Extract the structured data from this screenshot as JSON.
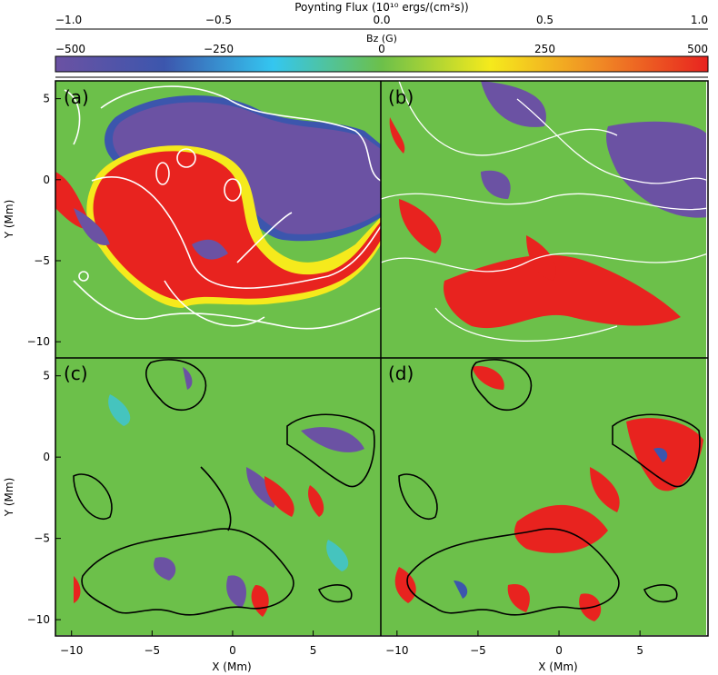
{
  "chart_data": {
    "type": "heatmap",
    "colorbar": {
      "top_axis": {
        "title": "Poynting Flux (10¹⁰ ergs/(cm²s))",
        "range": [
          -1.0,
          1.0
        ],
        "ticks": [
          "-1.0",
          "-0.5",
          "0.0",
          "0.5",
          "1.0"
        ]
      },
      "bottom_axis": {
        "title": "Bz (G)",
        "range": [
          -500,
          500
        ],
        "ticks": [
          "-500",
          "-250",
          "0",
          "250",
          "500"
        ]
      },
      "colors": [
        "#6b52a3",
        "#3c56ad",
        "#34c6f0",
        "#6cc04a",
        "#f5ea1c",
        "#f08a25",
        "#e8231f"
      ]
    },
    "xlabel": "X (Mm)",
    "ylabel": "Y (Mm)",
    "xlim": [
      -11,
      9.2
    ],
    "ylim": [
      -11,
      6.1
    ],
    "xticks": [
      "-10",
      "-5",
      "0",
      "5"
    ],
    "yticks": [
      "5",
      "0",
      "-5",
      "-10"
    ],
    "panels": [
      {
        "label": "(a)",
        "contour_color": "#ffffff"
      },
      {
        "label": "(b)",
        "contour_color": "#ffffff"
      },
      {
        "label": "(c)",
        "contour_color": "#000000"
      },
      {
        "label": "(d)",
        "contour_color": "#000000"
      }
    ]
  }
}
